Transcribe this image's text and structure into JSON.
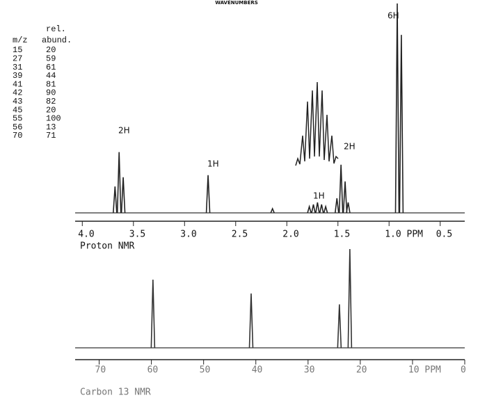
{
  "header": {
    "title": "WAVENUMBERS"
  },
  "table": {
    "columns": [
      "m/z",
      "rel.",
      "abund."
    ],
    "rows": [
      [
        15,
        20
      ],
      [
        27,
        59
      ],
      [
        31,
        61
      ],
      [
        39,
        44
      ],
      [
        41,
        81
      ],
      [
        42,
        90
      ],
      [
        43,
        82
      ],
      [
        45,
        20
      ],
      [
        55,
        100
      ],
      [
        56,
        13
      ],
      [
        70,
        71
      ]
    ]
  },
  "chart_data": [
    {
      "type": "spectrum",
      "title": "Proton NMR",
      "color": "#222",
      "x": [
        3.68,
        3.64,
        3.6,
        2.77,
        2.14,
        1.78,
        1.74,
        1.7,
        1.66,
        1.62,
        1.51,
        1.47,
        1.43,
        1.4,
        0.92,
        0.88
      ],
      "values": [
        12.6,
        29,
        17,
        18,
        2,
        3,
        4,
        5,
        4,
        3,
        7,
        23,
        15,
        5,
        100,
        85
      ],
      "xlim": [
        4.07,
        0.26
      ],
      "ylim": [
        0,
        100
      ],
      "xticks": [
        {
          "value": 4.0,
          "label": "4.0"
        },
        3.5,
        {
          "value": 3.0,
          "label": "3.0"
        },
        2.5,
        {
          "value": 2.0,
          "label": "2.0"
        },
        1.5,
        {
          "value": 1.0,
          "label": "1.0 PPM"
        },
        0.5
      ],
      "annotations": [
        "2H",
        "1H",
        "1H",
        "2H",
        "6H"
      ]
    },
    {
      "type": "spectrum",
      "title": "Carbon 13 NMR",
      "color": "#333",
      "x": [
        59.7,
        40.9,
        24.0,
        22.0
      ],
      "values": [
        69,
        55,
        44,
        100
      ],
      "xlim": [
        74.6,
        0
      ],
      "ylim": [
        0,
        100
      ],
      "xticks": [
        70,
        60,
        50,
        40,
        30,
        20,
        {
          "value": 10,
          "label": "10 PPM"
        },
        0
      ]
    }
  ]
}
